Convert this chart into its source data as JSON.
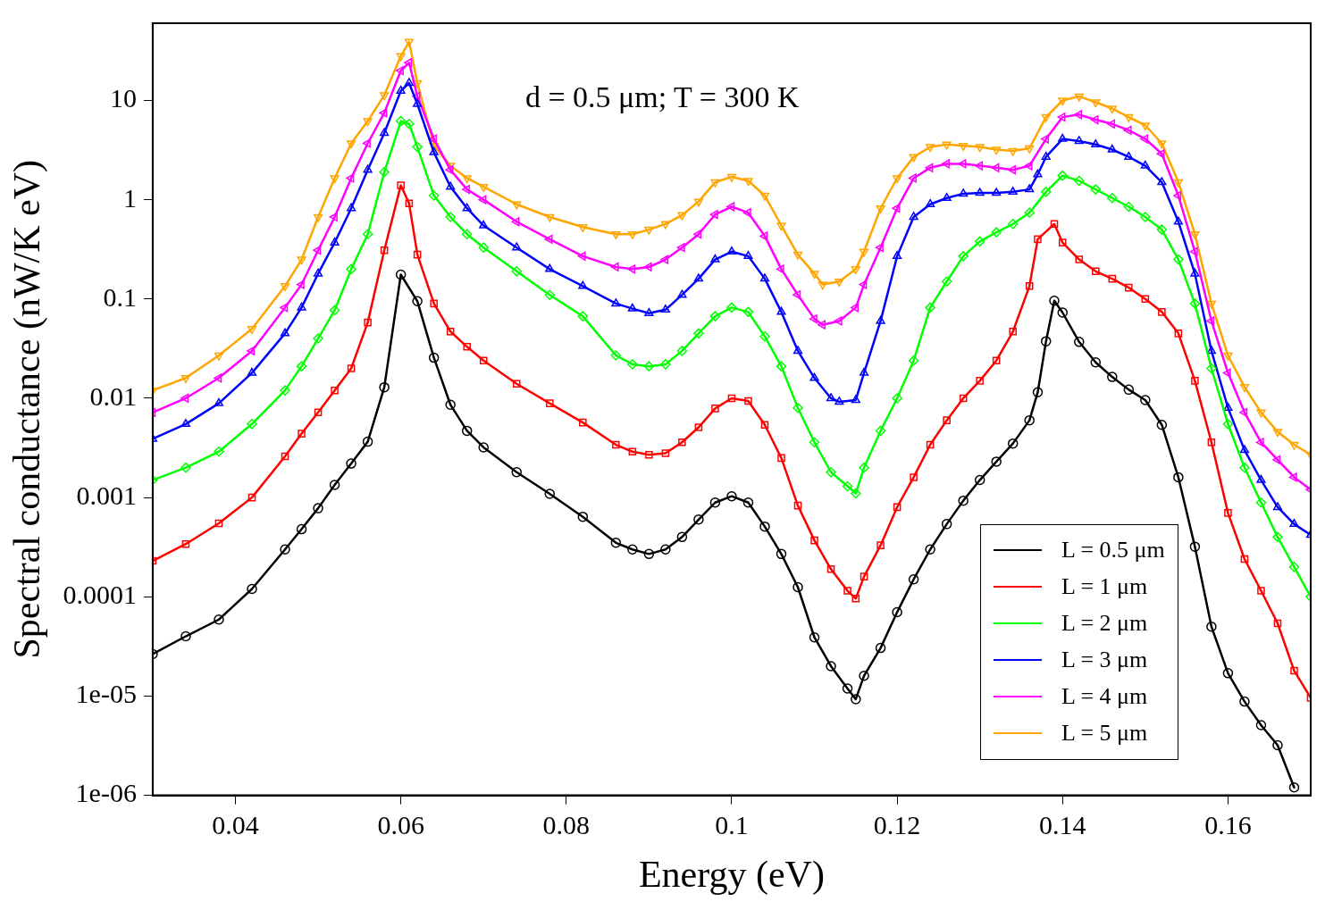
{
  "chart_data": {
    "type": "line",
    "xlabel": "Energy (eV)",
    "ylabel": "Spectral conductance (nW/K eV)",
    "annotations": [
      "d = 0.5 μm; T = 300 K"
    ],
    "log": "y",
    "legend": "bottom right",
    "line_style": "solid",
    "xlim": [
      0.03,
      0.17
    ],
    "xticks": [
      0.04,
      0.06,
      0.08,
      0.1,
      0.12,
      0.14,
      0.16
    ],
    "ylim": [
      1e-06,
      60
    ],
    "yticks": [
      {
        "value": 1e-06,
        "label": "1e-06"
      },
      {
        "value": 1e-05,
        "label": "1e-05"
      },
      0.0001,
      0.001,
      0.01,
      0.1,
      1,
      10
    ],
    "series": [
      {
        "name": "L = 0.5 μm",
        "color": "#000000",
        "marker": "circle",
        "x": [
          0.03,
          0.034,
          0.038,
          0.042,
          0.046,
          0.048,
          0.05,
          0.052,
          0.054,
          0.056,
          0.058,
          0.06,
          0.062,
          0.064,
          0.066,
          0.068,
          0.07,
          0.074,
          0.078,
          0.082,
          0.086,
          0.088,
          0.09,
          0.092,
          0.094,
          0.096,
          0.098,
          0.1,
          0.102,
          0.104,
          0.106,
          0.108,
          0.11,
          0.112,
          0.114,
          0.115,
          0.116,
          0.118,
          0.12,
          0.122,
          0.124,
          0.126,
          0.128,
          0.13,
          0.132,
          0.134,
          0.136,
          0.137,
          0.138,
          0.139,
          0.14,
          0.142,
          0.144,
          0.146,
          0.148,
          0.15,
          0.152,
          0.154,
          0.156,
          0.158,
          0.16,
          0.162,
          0.164,
          0.166,
          0.168
        ],
        "values": [
          2.65e-05,
          4e-05,
          5.9e-05,
          0.00012,
          0.0003,
          0.00048,
          0.00078,
          0.00134,
          0.0022,
          0.00365,
          0.0129,
          0.176,
          0.095,
          0.0256,
          0.0086,
          0.0047,
          0.0032,
          0.0018,
          0.00109,
          0.00064,
          0.00035,
          0.0003,
          0.00027,
          0.0003,
          0.0004,
          0.0006,
          0.00089,
          0.00103,
          0.00089,
          0.00051,
          0.00027,
          0.000125,
          3.9e-05,
          2e-05,
          1.19e-05,
          9.3e-06,
          1.6e-05,
          3.05e-05,
          7e-05,
          0.00015,
          0.0003,
          0.00054,
          0.00093,
          0.0015,
          0.0023,
          0.0035,
          0.006,
          0.0115,
          0.0375,
          0.096,
          0.073,
          0.037,
          0.023,
          0.0164,
          0.0122,
          0.0096,
          0.0054,
          0.0016,
          0.00032,
          5e-05,
          1.7e-05,
          8.8e-06,
          5.1e-06,
          3.2e-06,
          1.2e-06
        ]
      },
      {
        "name": "L = 1 μm",
        "color": "#ff0000",
        "marker": "square",
        "x": [
          0.03,
          0.034,
          0.038,
          0.042,
          0.046,
          0.048,
          0.05,
          0.052,
          0.054,
          0.056,
          0.058,
          0.06,
          0.061,
          0.062,
          0.064,
          0.066,
          0.068,
          0.07,
          0.074,
          0.078,
          0.082,
          0.086,
          0.088,
          0.09,
          0.092,
          0.094,
          0.096,
          0.098,
          0.1,
          0.102,
          0.104,
          0.106,
          0.108,
          0.11,
          0.112,
          0.114,
          0.115,
          0.116,
          0.118,
          0.12,
          0.122,
          0.124,
          0.126,
          0.128,
          0.13,
          0.132,
          0.134,
          0.136,
          0.137,
          0.139,
          0.14,
          0.142,
          0.144,
          0.146,
          0.148,
          0.15,
          0.152,
          0.154,
          0.156,
          0.158,
          0.16,
          0.162,
          0.164,
          0.166,
          0.168,
          0.17
        ],
        "values": [
          0.00023,
          0.00034,
          0.00055,
          0.001,
          0.0026,
          0.0044,
          0.0072,
          0.012,
          0.02,
          0.058,
          0.31,
          1.4,
          0.92,
          0.28,
          0.09,
          0.047,
          0.033,
          0.024,
          0.014,
          0.0089,
          0.0057,
          0.0034,
          0.0029,
          0.0027,
          0.0028,
          0.0036,
          0.0051,
          0.0079,
          0.01,
          0.0094,
          0.0054,
          0.0025,
          0.00083,
          0.00037,
          0.00019,
          0.000115,
          9.6e-05,
          0.00016,
          0.00033,
          0.0008,
          0.0016,
          0.0034,
          0.006,
          0.01,
          0.015,
          0.024,
          0.047,
          0.135,
          0.4,
          0.57,
          0.37,
          0.25,
          0.19,
          0.16,
          0.13,
          0.1,
          0.074,
          0.045,
          0.015,
          0.0036,
          0.0007,
          0.00024,
          0.000115,
          5.4e-05,
          1.8e-05,
          9.6e-06
        ]
      },
      {
        "name": "L = 2 μm",
        "color": "#00ff00",
        "marker": "diamond",
        "x": [
          0.03,
          0.034,
          0.038,
          0.042,
          0.046,
          0.048,
          0.05,
          0.052,
          0.054,
          0.056,
          0.058,
          0.06,
          0.061,
          0.062,
          0.064,
          0.066,
          0.068,
          0.07,
          0.074,
          0.078,
          0.082,
          0.086,
          0.088,
          0.09,
          0.092,
          0.094,
          0.096,
          0.098,
          0.1,
          0.102,
          0.104,
          0.106,
          0.108,
          0.11,
          0.112,
          0.114,
          0.115,
          0.116,
          0.118,
          0.12,
          0.122,
          0.124,
          0.126,
          0.128,
          0.13,
          0.132,
          0.134,
          0.136,
          0.138,
          0.14,
          0.142,
          0.144,
          0.146,
          0.148,
          0.15,
          0.152,
          0.154,
          0.156,
          0.158,
          0.16,
          0.162,
          0.164,
          0.166,
          0.168,
          0.17
        ],
        "values": [
          0.0015,
          0.002,
          0.0029,
          0.0055,
          0.012,
          0.021,
          0.04,
          0.077,
          0.2,
          0.45,
          1.9,
          6.2,
          5.8,
          3.4,
          1.1,
          0.67,
          0.45,
          0.33,
          0.19,
          0.11,
          0.067,
          0.027,
          0.022,
          0.021,
          0.022,
          0.03,
          0.045,
          0.067,
          0.082,
          0.074,
          0.042,
          0.021,
          0.008,
          0.0036,
          0.0018,
          0.0013,
          0.0011,
          0.002,
          0.0047,
          0.01,
          0.024,
          0.082,
          0.15,
          0.27,
          0.38,
          0.47,
          0.57,
          0.74,
          1.2,
          1.75,
          1.55,
          1.27,
          1.04,
          0.85,
          0.67,
          0.5,
          0.25,
          0.09,
          0.02,
          0.0055,
          0.002,
          0.00089,
          0.0004,
          0.0002,
          0.0001
        ]
      },
      {
        "name": "L = 3 μm",
        "color": "#0000ff",
        "marker": "triangle",
        "x": [
          0.03,
          0.034,
          0.038,
          0.042,
          0.046,
          0.048,
          0.05,
          0.052,
          0.054,
          0.056,
          0.058,
          0.06,
          0.061,
          0.062,
          0.064,
          0.066,
          0.068,
          0.07,
          0.074,
          0.078,
          0.082,
          0.086,
          0.088,
          0.09,
          0.092,
          0.094,
          0.096,
          0.098,
          0.1,
          0.102,
          0.104,
          0.106,
          0.108,
          0.11,
          0.112,
          0.113,
          0.115,
          0.116,
          0.118,
          0.12,
          0.122,
          0.124,
          0.126,
          0.128,
          0.13,
          0.132,
          0.134,
          0.136,
          0.137,
          0.138,
          0.14,
          0.142,
          0.144,
          0.146,
          0.148,
          0.15,
          0.152,
          0.154,
          0.156,
          0.158,
          0.16,
          0.162,
          0.164,
          0.166,
          0.168,
          0.17
        ],
        "values": [
          0.0039,
          0.0055,
          0.0089,
          0.018,
          0.045,
          0.082,
          0.18,
          0.37,
          0.82,
          2,
          4.7,
          12.5,
          15,
          9.2,
          3,
          1.35,
          0.82,
          0.55,
          0.33,
          0.2,
          0.135,
          0.09,
          0.08,
          0.072,
          0.078,
          0.11,
          0.16,
          0.25,
          0.3,
          0.27,
          0.16,
          0.074,
          0.03,
          0.016,
          0.01,
          0.0092,
          0.0096,
          0.018,
          0.06,
          0.27,
          0.67,
          0.9,
          1.04,
          1.15,
          1.17,
          1.17,
          1.2,
          1.27,
          1.8,
          2.7,
          4.1,
          3.9,
          3.6,
          3.2,
          2.7,
          2.2,
          1.5,
          0.6,
          0.18,
          0.03,
          0.008,
          0.003,
          0.0015,
          0.0008,
          0.00054,
          0.00042
        ]
      },
      {
        "name": "L = 4 μm",
        "color": "#ff00ff",
        "marker": "triangle-left",
        "x": [
          0.03,
          0.034,
          0.038,
          0.042,
          0.046,
          0.048,
          0.05,
          0.052,
          0.054,
          0.056,
          0.058,
          0.06,
          0.061,
          0.062,
          0.064,
          0.066,
          0.068,
          0.07,
          0.074,
          0.078,
          0.082,
          0.086,
          0.088,
          0.09,
          0.092,
          0.094,
          0.096,
          0.098,
          0.1,
          0.102,
          0.104,
          0.106,
          0.108,
          0.11,
          0.111,
          0.113,
          0.115,
          0.116,
          0.118,
          0.12,
          0.122,
          0.124,
          0.126,
          0.128,
          0.13,
          0.132,
          0.134,
          0.136,
          0.138,
          0.14,
          0.142,
          0.144,
          0.146,
          0.148,
          0.15,
          0.152,
          0.154,
          0.156,
          0.158,
          0.16,
          0.162,
          0.164,
          0.166,
          0.168,
          0.17
        ],
        "values": [
          0.0072,
          0.01,
          0.016,
          0.03,
          0.082,
          0.14,
          0.31,
          0.67,
          1.65,
          3.7,
          7.5,
          20,
          24,
          11,
          4.1,
          2,
          1.27,
          1,
          0.6,
          0.4,
          0.27,
          0.21,
          0.2,
          0.21,
          0.25,
          0.33,
          0.45,
          0.71,
          0.85,
          0.74,
          0.43,
          0.2,
          0.11,
          0.063,
          0.055,
          0.06,
          0.082,
          0.14,
          0.33,
          0.82,
          1.65,
          2.1,
          2.3,
          2.3,
          2.2,
          2.1,
          2,
          2.2,
          4.1,
          6.8,
          7.2,
          6.4,
          5.8,
          5,
          4.1,
          2.9,
          1.1,
          0.3,
          0.06,
          0.018,
          0.0072,
          0.0036,
          0.0024,
          0.0016,
          0.0012
        ]
      },
      {
        "name": "L = 5 μm",
        "color": "#ffa500",
        "marker": "triangle-down",
        "x": [
          0.03,
          0.034,
          0.038,
          0.042,
          0.046,
          0.048,
          0.05,
          0.052,
          0.054,
          0.056,
          0.058,
          0.06,
          0.061,
          0.062,
          0.064,
          0.066,
          0.068,
          0.07,
          0.074,
          0.078,
          0.082,
          0.086,
          0.088,
          0.09,
          0.092,
          0.094,
          0.096,
          0.098,
          0.1,
          0.102,
          0.104,
          0.106,
          0.108,
          0.11,
          0.111,
          0.113,
          0.115,
          0.116,
          0.118,
          0.12,
          0.122,
          0.124,
          0.126,
          0.128,
          0.13,
          0.132,
          0.134,
          0.136,
          0.138,
          0.14,
          0.142,
          0.144,
          0.146,
          0.148,
          0.15,
          0.152,
          0.154,
          0.156,
          0.158,
          0.16,
          0.162,
          0.164,
          0.166,
          0.168,
          0.17
        ],
        "values": [
          0.012,
          0.016,
          0.027,
          0.05,
          0.135,
          0.25,
          0.67,
          1.65,
          3.7,
          6.2,
          11.3,
          28,
          39,
          15,
          3.5,
          2.2,
          1.65,
          1.35,
          0.9,
          0.67,
          0.53,
          0.45,
          0.45,
          0.5,
          0.57,
          0.7,
          0.96,
          1.5,
          1.7,
          1.55,
          1.1,
          0.55,
          0.28,
          0.18,
          0.14,
          0.15,
          0.2,
          0.3,
          0.82,
          1.65,
          2.7,
          3.4,
          3.6,
          3.5,
          3.4,
          3.2,
          3.1,
          3.3,
          6.8,
          10,
          11,
          9.6,
          8.3,
          6.8,
          5.6,
          3.7,
          1.5,
          0.45,
          0.09,
          0.027,
          0.013,
          0.0072,
          0.0046,
          0.0034,
          0.0027
        ]
      }
    ]
  }
}
